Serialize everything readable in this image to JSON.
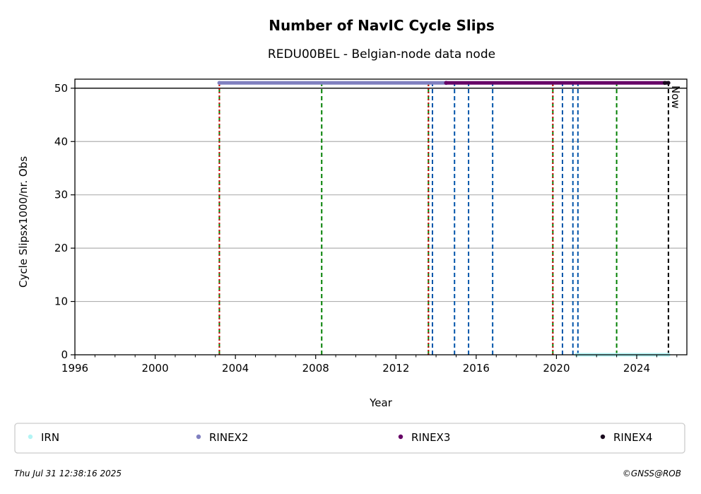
{
  "chart_data": {
    "type": "scatter",
    "title": "Number of NavIC Cycle Slips",
    "subtitle": "REDU00BEL - Belgian-node data node",
    "xlabel": "Year",
    "ylabel": "Cycle Slipsx1000/nr. Obs",
    "xlim": [
      1996,
      2026.5
    ],
    "ylim": [
      0,
      51.7
    ],
    "xticks": [
      1996,
      2000,
      2004,
      2008,
      2012,
      2016,
      2020,
      2024
    ],
    "yticks": [
      0,
      10,
      20,
      30,
      40,
      50
    ],
    "grid": "horizontal",
    "reference_line_y": 50,
    "now_label": "Now",
    "now_x": 2025.58,
    "legend_position": "bottom",
    "series": [
      {
        "name": "IRN",
        "color": "#b3f4f4",
        "y": 0,
        "x_range": [
          2021.0,
          2025.58
        ]
      },
      {
        "name": "RINEX2",
        "color": "#8080c0",
        "y": 51,
        "x_range": [
          2003.2,
          2014.5
        ]
      },
      {
        "name": "RINEX3",
        "color": "#660066",
        "y": 51,
        "x_range": [
          2014.5,
          2025.4
        ]
      },
      {
        "name": "RINEX4",
        "color": "#1a0a1e",
        "y": 51,
        "x_range": [
          2025.4,
          2025.58
        ]
      }
    ],
    "event_lines": [
      {
        "x": 2003.2,
        "color": "#008000",
        "style": "dashed"
      },
      {
        "x": 2003.2,
        "color": "#cc0000",
        "style": "dotted"
      },
      {
        "x": 2008.3,
        "color": "#008000",
        "style": "dashed"
      },
      {
        "x": 2013.62,
        "color": "#008000",
        "style": "dashed"
      },
      {
        "x": 2013.62,
        "color": "#cc0000",
        "style": "dotted"
      },
      {
        "x": 2013.82,
        "color": "#0055aa",
        "style": "dashed"
      },
      {
        "x": 2014.92,
        "color": "#0055aa",
        "style": "dashed"
      },
      {
        "x": 2015.62,
        "color": "#0055aa",
        "style": "dashed"
      },
      {
        "x": 2016.82,
        "color": "#0055aa",
        "style": "dashed"
      },
      {
        "x": 2019.82,
        "color": "#008000",
        "style": "dashed"
      },
      {
        "x": 2019.82,
        "color": "#cc0000",
        "style": "dotted"
      },
      {
        "x": 2020.3,
        "color": "#0055aa",
        "style": "dashed"
      },
      {
        "x": 2020.82,
        "color": "#0055aa",
        "style": "dashed"
      },
      {
        "x": 2021.07,
        "color": "#0055aa",
        "style": "dashed"
      },
      {
        "x": 2023.0,
        "color": "#008000",
        "style": "dashed"
      },
      {
        "x": 2025.58,
        "color": "#000000",
        "style": "dashed"
      }
    ]
  },
  "footer": {
    "timestamp": "Thu Jul 31 12:38:16 2025",
    "credit": "©GNSS@ROB"
  }
}
